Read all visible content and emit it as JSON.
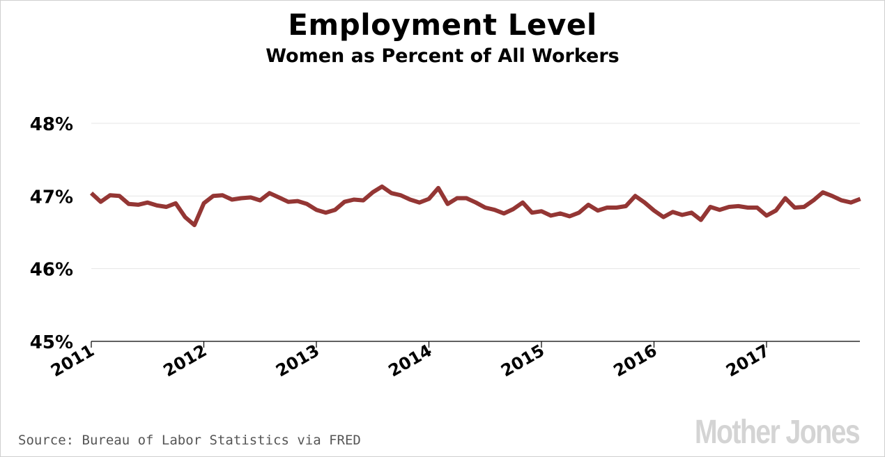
{
  "title": "Employment Level",
  "subtitle": "Women as Percent of All Workers",
  "source": "Source: Bureau of Labor Statistics via FRED",
  "logo_text": "Mother Jones",
  "chart_data": {
    "type": "line",
    "title": "Employment Level",
    "subtitle": "Women as Percent of All Workers",
    "xlabel": "",
    "ylabel": "",
    "x_start": "2011-01",
    "x_interval": "monthly",
    "x_ticks": [
      "2011",
      "2012",
      "2013",
      "2014",
      "2015",
      "2016",
      "2017"
    ],
    "y_ticks": [
      "45%",
      "46%",
      "47%",
      "48%"
    ],
    "ylim": [
      45,
      48
    ],
    "grid": true,
    "line_color": "#943634",
    "series": [
      {
        "values": [
          47.04,
          46.92,
          47.01,
          47.0,
          46.89,
          46.88,
          46.91,
          46.87,
          46.85,
          46.9,
          46.71,
          46.6,
          46.9,
          47.0,
          47.01,
          46.95,
          46.97,
          46.98,
          46.94,
          47.04,
          46.98,
          46.92,
          46.93,
          46.89,
          46.81,
          46.77,
          46.81,
          46.92,
          46.95,
          46.94,
          47.05,
          47.13,
          47.04,
          47.01,
          46.95,
          46.91,
          46.96,
          47.11,
          46.89,
          46.97,
          46.97,
          46.91,
          46.84,
          46.81,
          46.76,
          46.82,
          46.91,
          46.77,
          46.79,
          46.73,
          46.76,
          46.72,
          46.77,
          46.88,
          46.8,
          46.84,
          46.84,
          46.86,
          47.0,
          46.91,
          46.8,
          46.71,
          46.78,
          46.74,
          46.77,
          46.67,
          46.85,
          46.81,
          46.85,
          46.86,
          46.84,
          46.84,
          46.73,
          46.8,
          46.97,
          46.84,
          46.85,
          46.94,
          47.05,
          47.0,
          46.94,
          46.91,
          46.96
        ]
      }
    ]
  }
}
